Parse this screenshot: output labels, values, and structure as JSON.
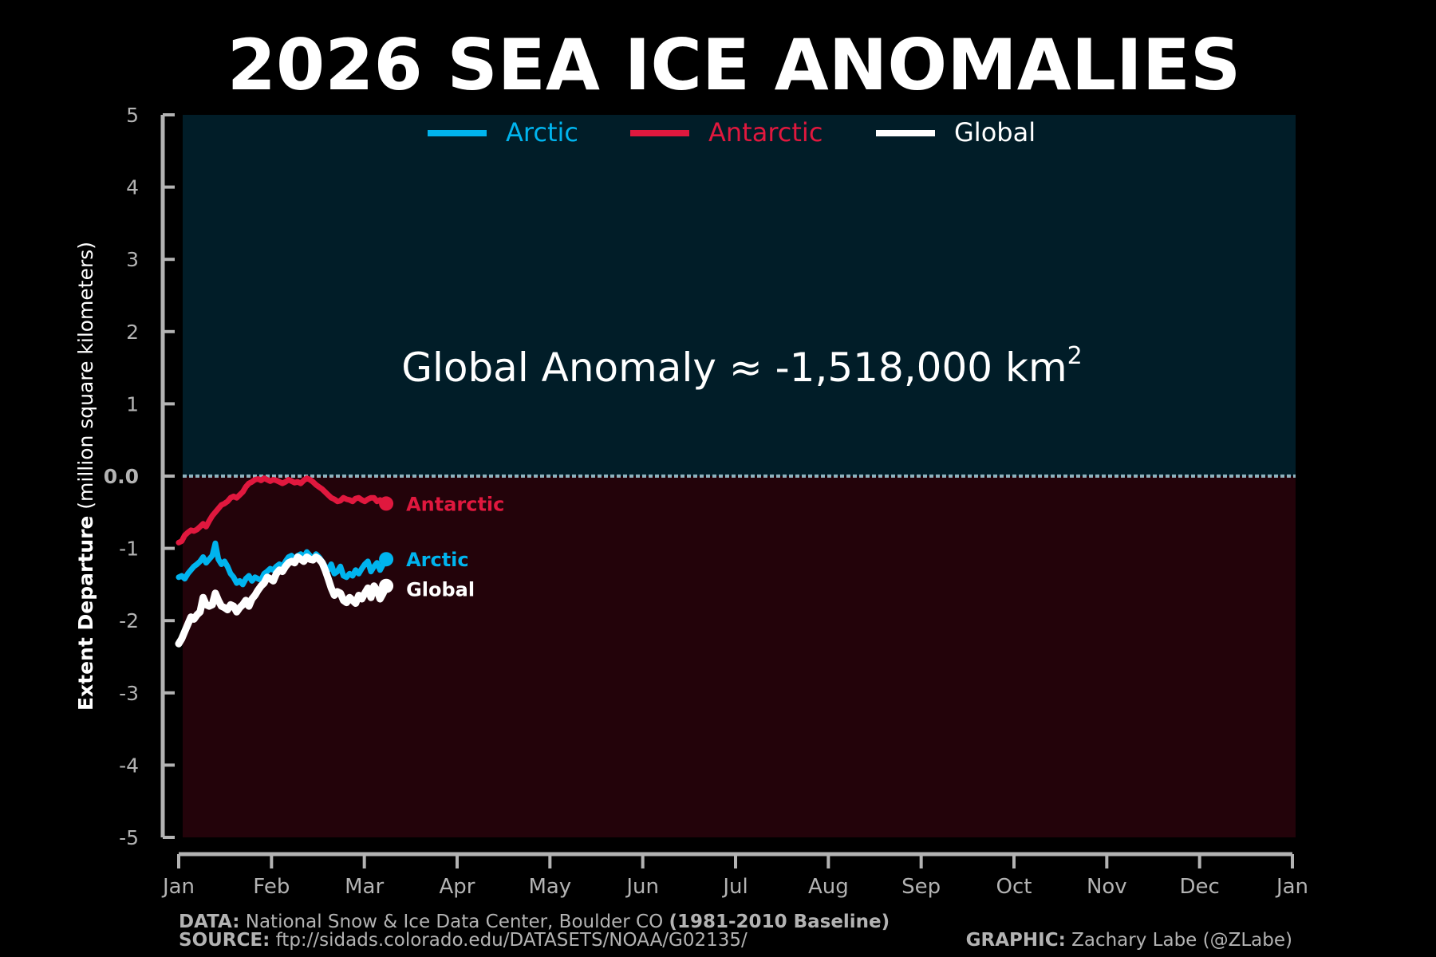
{
  "title": "2026 SEA ICE ANOMALIES",
  "annotation": {
    "prefix": "Global Anomaly ≈ -1,518,000 km",
    "superscript": "2"
  },
  "footer": {
    "data_label": "DATA:",
    "data_text": "National Snow & Ice Data Center, Boulder CO",
    "baseline": "(1981-2010 Baseline)",
    "source_label": "SOURCE:",
    "source_text": "ftp://sidads.colorado.edu/DATASETS/NOAA/G02135/",
    "graphic_label": "GRAPHIC:",
    "graphic_text": "Zachary Labe (@ZLabe)"
  },
  "colors": {
    "background": "#000000",
    "positive_band": "#011d28",
    "negative_band": "#23030a",
    "axis": "#b3b3b3",
    "arctic": "#00b4ee",
    "antarctic": "#e0183e",
    "global": "#ffffff",
    "zero_line": "#8fb3bf"
  },
  "chart_data": {
    "type": "line",
    "title": "2026 SEA ICE ANOMALIES",
    "xlabel": "",
    "ylabel_bold": "Extent Departure",
    "ylabel_rest": " (million square kilometers)",
    "ylim": [
      -5,
      5
    ],
    "yticks": [
      "5",
      "4",
      "3",
      "2",
      "1",
      "0.0",
      "-1",
      "-2",
      "-3",
      "-4",
      "-5"
    ],
    "ytick_values": [
      5,
      4,
      3,
      2,
      1,
      0,
      -1,
      -2,
      -3,
      -4,
      -5
    ],
    "xticks": [
      "Jan",
      "Feb",
      "Mar",
      "Apr",
      "May",
      "Jun",
      "Jul",
      "Aug",
      "Sep",
      "Oct",
      "Nov",
      "Dec",
      "Jan"
    ],
    "xlim_days": [
      1,
      366
    ],
    "legend": {
      "placement": "top-center",
      "entries": [
        "Arctic",
        "Antarctic",
        "Global"
      ]
    },
    "series": [
      {
        "name": "Arctic",
        "end_label": "Arctic",
        "x": [
          1,
          2,
          3,
          4,
          5,
          6,
          7,
          8,
          9,
          10,
          11,
          12,
          13,
          14,
          15,
          16,
          17,
          18,
          19,
          20,
          21,
          22,
          23,
          24,
          25,
          26,
          27,
          28,
          29,
          30,
          31,
          32,
          33,
          34,
          35,
          36,
          37,
          38,
          39,
          40,
          41,
          42,
          43,
          44,
          45,
          46,
          47,
          48,
          49,
          50,
          51,
          52,
          53,
          54,
          55,
          56,
          57,
          58,
          59,
          60,
          61,
          62,
          63,
          64,
          65,
          66,
          67,
          68,
          69
        ],
        "y": [
          -1.4,
          -1.38,
          -1.42,
          -1.35,
          -1.3,
          -1.25,
          -1.22,
          -1.18,
          -1.12,
          -1.2,
          -1.15,
          -1.1,
          -0.93,
          -1.15,
          -1.22,
          -1.18,
          -1.25,
          -1.35,
          -1.4,
          -1.48,
          -1.45,
          -1.5,
          -1.42,
          -1.38,
          -1.45,
          -1.4,
          -1.42,
          -1.44,
          -1.35,
          -1.32,
          -1.28,
          -1.3,
          -1.25,
          -1.22,
          -1.25,
          -1.18,
          -1.12,
          -1.1,
          -1.15,
          -1.1,
          -1.08,
          -1.12,
          -1.05,
          -1.1,
          -1.15,
          -1.08,
          -1.12,
          -1.18,
          -1.25,
          -1.3,
          -1.22,
          -1.35,
          -1.32,
          -1.25,
          -1.38,
          -1.4,
          -1.35,
          -1.38,
          -1.3,
          -1.35,
          -1.28,
          -1.22,
          -1.18,
          -1.32,
          -1.25,
          -1.2,
          -1.3,
          -1.22,
          -1.15
        ]
      },
      {
        "name": "Antarctic",
        "end_label": "Antarctic",
        "x": [
          1,
          2,
          3,
          4,
          5,
          6,
          7,
          8,
          9,
          10,
          11,
          12,
          13,
          14,
          15,
          16,
          17,
          18,
          19,
          20,
          21,
          22,
          23,
          24,
          25,
          26,
          27,
          28,
          29,
          30,
          31,
          32,
          33,
          34,
          35,
          36,
          37,
          38,
          39,
          40,
          41,
          42,
          43,
          44,
          45,
          46,
          47,
          48,
          49,
          50,
          51,
          52,
          53,
          54,
          55,
          56,
          57,
          58,
          59,
          60,
          61,
          62,
          63,
          64,
          65,
          66,
          67,
          68,
          69
        ],
        "y": [
          -0.92,
          -0.9,
          -0.82,
          -0.78,
          -0.75,
          -0.76,
          -0.74,
          -0.7,
          -0.66,
          -0.7,
          -0.62,
          -0.55,
          -0.5,
          -0.45,
          -0.4,
          -0.38,
          -0.35,
          -0.3,
          -0.28,
          -0.3,
          -0.26,
          -0.22,
          -0.15,
          -0.1,
          -0.08,
          -0.05,
          -0.04,
          -0.06,
          -0.03,
          -0.05,
          -0.07,
          -0.05,
          -0.06,
          -0.08,
          -0.1,
          -0.08,
          -0.05,
          -0.07,
          -0.09,
          -0.08,
          -0.1,
          -0.06,
          -0.03,
          -0.05,
          -0.08,
          -0.12,
          -0.15,
          -0.18,
          -0.22,
          -0.26,
          -0.3,
          -0.32,
          -0.35,
          -0.34,
          -0.3,
          -0.32,
          -0.33,
          -0.35,
          -0.31,
          -0.3,
          -0.33,
          -0.35,
          -0.32,
          -0.3,
          -0.3,
          -0.35,
          -0.33,
          -0.36,
          -0.38
        ]
      },
      {
        "name": "Global",
        "end_label": "Global",
        "x": [
          1,
          2,
          3,
          4,
          5,
          6,
          7,
          8,
          9,
          10,
          11,
          12,
          13,
          14,
          15,
          16,
          17,
          18,
          19,
          20,
          21,
          22,
          23,
          24,
          25,
          26,
          27,
          28,
          29,
          30,
          31,
          32,
          33,
          34,
          35,
          36,
          37,
          38,
          39,
          40,
          41,
          42,
          43,
          44,
          45,
          46,
          47,
          48,
          49,
          50,
          51,
          52,
          53,
          54,
          55,
          56,
          57,
          58,
          59,
          60,
          61,
          62,
          63,
          64,
          65,
          66,
          67,
          68,
          69
        ],
        "y": [
          -2.32,
          -2.25,
          -2.15,
          -2.05,
          -1.95,
          -1.98,
          -1.92,
          -1.88,
          -1.68,
          -1.78,
          -1.8,
          -1.78,
          -1.62,
          -1.72,
          -1.8,
          -1.82,
          -1.85,
          -1.78,
          -1.8,
          -1.88,
          -1.82,
          -1.78,
          -1.72,
          -1.8,
          -1.7,
          -1.65,
          -1.58,
          -1.52,
          -1.48,
          -1.4,
          -1.42,
          -1.45,
          -1.35,
          -1.3,
          -1.32,
          -1.25,
          -1.2,
          -1.18,
          -1.2,
          -1.12,
          -1.15,
          -1.18,
          -1.12,
          -1.15,
          -1.16,
          -1.12,
          -1.15,
          -1.2,
          -1.3,
          -1.42,
          -1.55,
          -1.65,
          -1.6,
          -1.62,
          -1.72,
          -1.75,
          -1.68,
          -1.72,
          -1.76,
          -1.65,
          -1.7,
          -1.62,
          -1.55,
          -1.68,
          -1.52,
          -1.58,
          -1.7,
          -1.62,
          -1.52
        ]
      }
    ]
  }
}
